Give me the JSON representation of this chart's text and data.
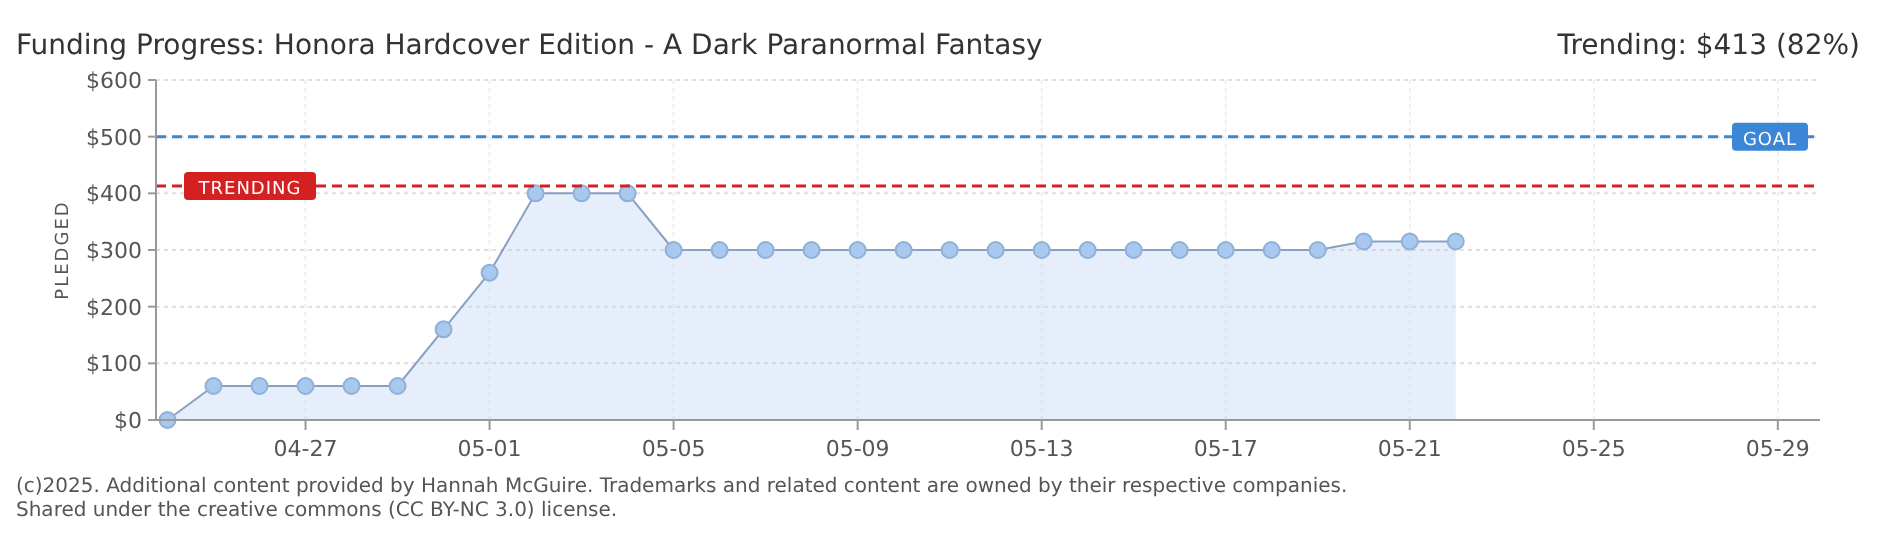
{
  "chart_data": {
    "type": "area",
    "title": "Funding Progress: Honora Hardcover Edition - A Dark Paranormal Fantasy",
    "subtitle": "Trending: $413 (82%)",
    "ylabel": "PLEDGED",
    "x": [
      "2025-04-24",
      "2025-04-25",
      "2025-04-26",
      "2025-04-27",
      "2025-04-28",
      "2025-04-29",
      "2025-04-30",
      "2025-05-01",
      "2025-05-02",
      "2025-05-03",
      "2025-05-04",
      "2025-05-05",
      "2025-05-06",
      "2025-05-07",
      "2025-05-08",
      "2025-05-09",
      "2025-05-10",
      "2025-05-11",
      "2025-05-12",
      "2025-05-13",
      "2025-05-14",
      "2025-05-15",
      "2025-05-16",
      "2025-05-17",
      "2025-05-18",
      "2025-05-19",
      "2025-05-20",
      "2025-05-21",
      "2025-05-22"
    ],
    "series": [
      {
        "color": "#a9c8ee",
        "values": [
          0,
          60,
          60,
          60,
          60,
          60,
          160,
          260,
          400,
          400,
          400,
          300,
          300,
          300,
          300,
          300,
          300,
          300,
          300,
          300,
          300,
          300,
          300,
          300,
          300,
          300,
          315,
          315,
          315
        ]
      }
    ],
    "xlim": [
      "2025-04-23T18:00",
      "2025-05-29T22:00"
    ],
    "xticks": [
      {
        "value": "2025-04-27",
        "label": "04-27"
      },
      {
        "value": "2025-05-01",
        "label": "05-01"
      },
      {
        "value": "2025-05-05",
        "label": "05-05"
      },
      {
        "value": "2025-05-09",
        "label": "05-09"
      },
      {
        "value": "2025-05-13",
        "label": "05-13"
      },
      {
        "value": "2025-05-17",
        "label": "05-17"
      },
      {
        "value": "2025-05-21",
        "label": "05-21"
      },
      {
        "value": "2025-05-25",
        "label": "05-25"
      },
      {
        "value": "2025-05-29",
        "label": "05-29"
      }
    ],
    "ylim": [
      0,
      600
    ],
    "yticks": [
      {
        "value": 0,
        "label": "$0"
      },
      {
        "value": 100,
        "label": "$100"
      },
      {
        "value": 200,
        "label": "$200"
      },
      {
        "value": 300,
        "label": "$300"
      },
      {
        "value": 400,
        "label": "$400"
      },
      {
        "value": 500,
        "label": "$500"
      },
      {
        "value": 600,
        "label": "$600"
      }
    ],
    "ref_lines": [
      {
        "axis": "y",
        "value": 500,
        "label": "GOAL",
        "color": "#3b86d6",
        "line_style": "dashed"
      },
      {
        "axis": "y",
        "value": 413,
        "label": "TRENDING",
        "color": "#d42020",
        "line_style": "dashed"
      }
    ],
    "grid": true,
    "marker": "circle",
    "annotations": [
      "(c)2025. Additional content provided by Hannah McGuire. Trademarks and related content are owned by their respective companies.",
      "Shared under the creative commons (CC BY-NC 3.0) license."
    ]
  }
}
